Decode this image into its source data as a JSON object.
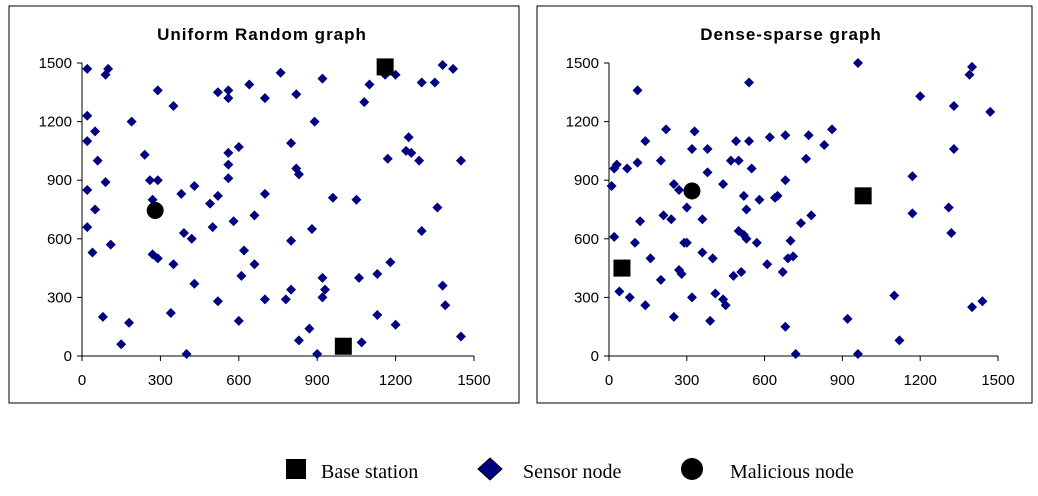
{
  "colors": {
    "sensor": "#000080",
    "base": "#000000",
    "malicious": "#000000"
  },
  "legend": [
    {
      "marker": "square",
      "label": "Base station"
    },
    {
      "marker": "diamond",
      "label": "Sensor node"
    },
    {
      "marker": "circle",
      "label": "Malicious node"
    }
  ],
  "chart_data": [
    {
      "type": "scatter",
      "title": "Uniform Random graph",
      "xlim": [
        0,
        1500
      ],
      "ylim": [
        0,
        1500
      ],
      "xticks": [
        "0",
        "300",
        "600",
        "900",
        "1200",
        "1500"
      ],
      "yticks": [
        "0",
        "300",
        "600",
        "900",
        "1200",
        "1500"
      ],
      "grid": false,
      "series": [
        {
          "name": "Base station",
          "marker": "square",
          "points": [
            [
              1160,
              1480
            ],
            [
              1000,
              50
            ]
          ]
        },
        {
          "name": "Malicious node",
          "marker": "circle",
          "points": [
            [
              280,
              745
            ]
          ]
        },
        {
          "name": "Sensor node",
          "marker": "diamond",
          "points": [
            [
              20,
              1470
            ],
            [
              100,
              1470
            ],
            [
              90,
              1440
            ],
            [
              20,
              1230
            ],
            [
              50,
              1150
            ],
            [
              20,
              1100
            ],
            [
              290,
              1360
            ],
            [
              350,
              1280
            ],
            [
              190,
              1200
            ],
            [
              520,
              1350
            ],
            [
              560,
              1360
            ],
            [
              560,
              1320
            ],
            [
              640,
              1390
            ],
            [
              700,
              1320
            ],
            [
              760,
              1450
            ],
            [
              820,
              1340
            ],
            [
              920,
              1420
            ],
            [
              890,
              1200
            ],
            [
              800,
              1090
            ],
            [
              820,
              960
            ],
            [
              830,
              930
            ],
            [
              560,
              1040
            ],
            [
              560,
              980
            ],
            [
              600,
              1070
            ],
            [
              240,
              1030
            ],
            [
              260,
              900
            ],
            [
              290,
              900
            ],
            [
              60,
              1000
            ],
            [
              90,
              890
            ],
            [
              20,
              850
            ],
            [
              270,
              800
            ],
            [
              380,
              830
            ],
            [
              430,
              870
            ],
            [
              490,
              780
            ],
            [
              520,
              820
            ],
            [
              560,
              910
            ],
            [
              660,
              720
            ],
            [
              700,
              830
            ],
            [
              580,
              690
            ],
            [
              500,
              660
            ],
            [
              390,
              630
            ],
            [
              420,
              600
            ],
            [
              350,
              470
            ],
            [
              270,
              520
            ],
            [
              290,
              500
            ],
            [
              40,
              530
            ],
            [
              110,
              570
            ],
            [
              20,
              660
            ],
            [
              50,
              750
            ],
            [
              80,
              200
            ],
            [
              180,
              170
            ],
            [
              150,
              60
            ],
            [
              340,
              220
            ],
            [
              400,
              10
            ],
            [
              430,
              370
            ],
            [
              520,
              280
            ],
            [
              600,
              180
            ],
            [
              610,
              410
            ],
            [
              620,
              540
            ],
            [
              660,
              470
            ],
            [
              700,
              290
            ],
            [
              780,
              290
            ],
            [
              800,
              340
            ],
            [
              800,
              590
            ],
            [
              870,
              140
            ],
            [
              830,
              80
            ],
            [
              900,
              10
            ],
            [
              920,
              300
            ],
            [
              920,
              400
            ],
            [
              930,
              340
            ],
            [
              880,
              650
            ],
            [
              960,
              810
            ],
            [
              1050,
              800
            ],
            [
              1060,
              400
            ],
            [
              1070,
              70
            ],
            [
              1080,
              1300
            ],
            [
              1100,
              1390
            ],
            [
              1160,
              1440
            ],
            [
              1200,
              1440
            ],
            [
              1170,
              1010
            ],
            [
              1180,
              480
            ],
            [
              1200,
              160
            ],
            [
              1130,
              420
            ],
            [
              1130,
              210
            ],
            [
              1240,
              1050
            ],
            [
              1250,
              1120
            ],
            [
              1260,
              1040
            ],
            [
              1290,
              1000
            ],
            [
              1300,
              1400
            ],
            [
              1350,
              1400
            ],
            [
              1380,
              1490
            ],
            [
              1420,
              1470
            ],
            [
              1360,
              760
            ],
            [
              1300,
              640
            ],
            [
              1380,
              360
            ],
            [
              1390,
              260
            ],
            [
              1450,
              1000
            ],
            [
              1450,
              100
            ]
          ]
        }
      ]
    },
    {
      "type": "scatter",
      "title": "Dense-sparse graph",
      "xlim": [
        0,
        1500
      ],
      "ylim": [
        0,
        1500
      ],
      "xticks": [
        "0",
        "300",
        "600",
        "900",
        "1200",
        "1500"
      ],
      "yticks": [
        "0",
        "300",
        "600",
        "900",
        "1200",
        "1500"
      ],
      "grid": false,
      "series": [
        {
          "name": "Base station",
          "marker": "square",
          "points": [
            [
              980,
              820
            ],
            [
              50,
              450
            ]
          ]
        },
        {
          "name": "Malicious node",
          "marker": "circle",
          "points": [
            [
              320,
              845
            ]
          ]
        },
        {
          "name": "Sensor node",
          "marker": "diamond",
          "points": [
            [
              10,
              870
            ],
            [
              20,
              960
            ],
            [
              30,
              980
            ],
            [
              20,
              610
            ],
            [
              40,
              330
            ],
            [
              80,
              300
            ],
            [
              60,
              470
            ],
            [
              70,
              960
            ],
            [
              110,
              990
            ],
            [
              110,
              1360
            ],
            [
              140,
              1100
            ],
            [
              120,
              690
            ],
            [
              100,
              580
            ],
            [
              140,
              260
            ],
            [
              160,
              500
            ],
            [
              200,
              390
            ],
            [
              200,
              1000
            ],
            [
              220,
              1160
            ],
            [
              210,
              720
            ],
            [
              240,
              700
            ],
            [
              250,
              200
            ],
            [
              250,
              880
            ],
            [
              270,
              440
            ],
            [
              270,
              850
            ],
            [
              280,
              420
            ],
            [
              290,
              580
            ],
            [
              300,
              580
            ],
            [
              300,
              760
            ],
            [
              320,
              1060
            ],
            [
              330,
              1150
            ],
            [
              320,
              300
            ],
            [
              360,
              530
            ],
            [
              360,
              700
            ],
            [
              380,
              940
            ],
            [
              380,
              1060
            ],
            [
              390,
              180
            ],
            [
              400,
              500
            ],
            [
              410,
              320
            ],
            [
              440,
              290
            ],
            [
              450,
              260
            ],
            [
              440,
              880
            ],
            [
              470,
              1000
            ],
            [
              480,
              410
            ],
            [
              490,
              1100
            ],
            [
              500,
              1000
            ],
            [
              500,
              640
            ],
            [
              510,
              430
            ],
            [
              520,
              620
            ],
            [
              520,
              820
            ],
            [
              530,
              750
            ],
            [
              530,
              600
            ],
            [
              540,
              1400
            ],
            [
              540,
              1100
            ],
            [
              550,
              960
            ],
            [
              570,
              580
            ],
            [
              580,
              800
            ],
            [
              610,
              470
            ],
            [
              620,
              1120
            ],
            [
              640,
              810
            ],
            [
              650,
              820
            ],
            [
              670,
              430
            ],
            [
              680,
              900
            ],
            [
              680,
              1130
            ],
            [
              680,
              150
            ],
            [
              690,
              500
            ],
            [
              700,
              590
            ],
            [
              710,
              510
            ],
            [
              720,
              10
            ],
            [
              740,
              680
            ],
            [
              760,
              1010
            ],
            [
              770,
              1130
            ],
            [
              780,
              720
            ],
            [
              830,
              1080
            ],
            [
              860,
              1160
            ],
            [
              920,
              190
            ],
            [
              960,
              1500
            ],
            [
              960,
              10
            ],
            [
              1100,
              310
            ],
            [
              1120,
              80
            ],
            [
              1170,
              920
            ],
            [
              1170,
              730
            ],
            [
              1200,
              1330
            ],
            [
              1310,
              760
            ],
            [
              1330,
              1280
            ],
            [
              1330,
              1060
            ],
            [
              1320,
              630
            ],
            [
              1390,
              1440
            ],
            [
              1400,
              1480
            ],
            [
              1400,
              250
            ],
            [
              1440,
              280
            ],
            [
              1470,
              1250
            ]
          ]
        }
      ]
    }
  ]
}
